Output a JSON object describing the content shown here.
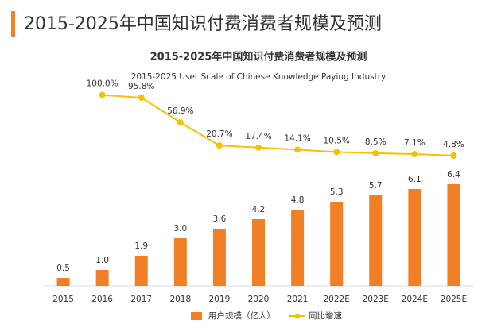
{
  "header": {
    "title": "2015-2025年中国知识付费消费者规模及预测"
  },
  "chart_data": {
    "type": "bar",
    "title": "2015-2025年中国知识付费消费者规模及预测",
    "subtitle": "2015-2025 User Scale of Chinese Knowledge Paying Industry",
    "categories": [
      "2015",
      "2016",
      "2017",
      "2018",
      "2019",
      "2020",
      "2021",
      "2022E",
      "2023E",
      "2024E",
      "2025E"
    ],
    "series": [
      {
        "name": "用户规模（亿人）",
        "type": "bar",
        "color": "#f07f26",
        "values": [
          0.5,
          1.0,
          1.9,
          3.0,
          3.6,
          4.2,
          4.8,
          5.3,
          5.7,
          6.1,
          6.4
        ],
        "value_labels": [
          "0.5",
          "1.0",
          "1.9",
          "3.0",
          "3.6",
          "4.2",
          "4.8",
          "5.3",
          "5.7",
          "6.1",
          "6.4"
        ]
      },
      {
        "name": "同比增速",
        "type": "line",
        "axis": "y2",
        "color": "#f5c200",
        "values": [
          null,
          100.0,
          95.8,
          56.9,
          20.7,
          17.4,
          14.1,
          10.5,
          8.5,
          7.1,
          4.8
        ],
        "value_labels": [
          null,
          "100.0%",
          "95.8%",
          "56.9%",
          "20.7%",
          "17.4%",
          "14.1%",
          "10.5%",
          "8.5%",
          "7.1%",
          "4.8%"
        ]
      }
    ],
    "ylim": [
      0,
      12.5
    ],
    "y2lim": [
      -200,
      112
    ],
    "legend": "bottom"
  }
}
